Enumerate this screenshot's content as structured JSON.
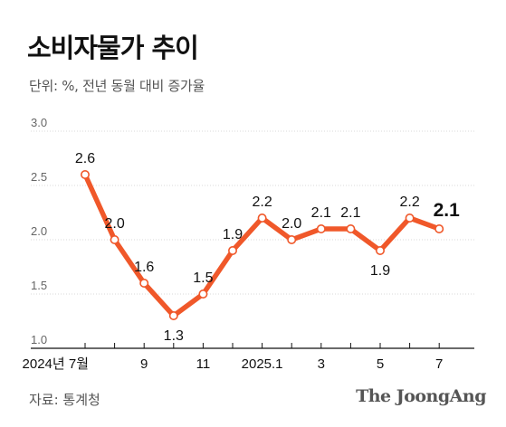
{
  "title": "소비자물가 추이",
  "subtitle": "단위: %, 전년 동월 대비 증가율",
  "source": "자료: 통계청",
  "brand": "The JoongAng",
  "chart_data": {
    "type": "line",
    "title": "소비자물가 추이",
    "ylabel": "단위: %, 전년 동월 대비 증가율",
    "ylim": [
      1.0,
      3.0
    ],
    "yticks": [
      "3.0",
      "2.5",
      "2.0",
      "1.5",
      "1.0"
    ],
    "grid": true,
    "x": [
      "2024-07",
      "2024-08",
      "2024-09",
      "2024-10",
      "2024-11",
      "2024-12",
      "2025-01",
      "2025-02",
      "2025-03",
      "2025-04",
      "2025-05",
      "2025-06",
      "2025-07"
    ],
    "xtick_labels": [
      "2024년 7월",
      "",
      "9",
      "",
      "11",
      "",
      "2025.1",
      "",
      "3",
      "",
      "5",
      "",
      "7"
    ],
    "series": [
      {
        "values": [
          2.6,
          2.0,
          1.6,
          1.3,
          1.5,
          1.9,
          2.2,
          2.0,
          2.1,
          2.1,
          1.9,
          2.2,
          2.1
        ],
        "labels": [
          "2.6",
          "2.0",
          "1.6",
          "1.3",
          "1.5",
          "1.9",
          "2.2",
          "2.0",
          "2.1",
          "2.1",
          "1.9",
          "2.2",
          "2.1"
        ],
        "color": "#f0582a"
      }
    ]
  }
}
